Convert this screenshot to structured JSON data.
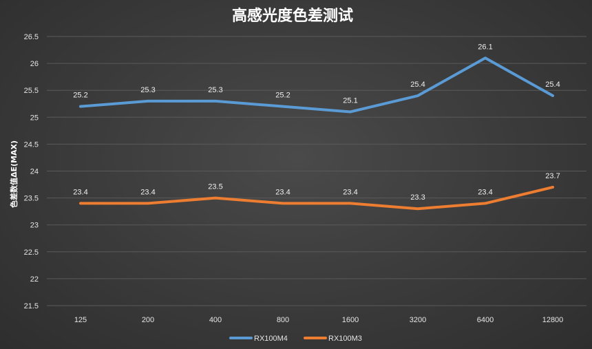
{
  "chart_data": {
    "type": "line",
    "title": "高感光度色差测试",
    "xlabel": "",
    "ylabel": "色差数值ΔE(MAX)",
    "categories": [
      "125",
      "200",
      "400",
      "800",
      "1600",
      "3200",
      "6400",
      "12800"
    ],
    "ylim": [
      21.5,
      26.5
    ],
    "yticks": [
      "21.5",
      "22",
      "22.5",
      "23",
      "23.5",
      "24",
      "24.5",
      "25",
      "25.5",
      "26",
      "26.5"
    ],
    "grid": true,
    "legend_position": "bottom",
    "series": [
      {
        "name": "RX100M4",
        "color": "#5b9bd5",
        "values": [
          25.2,
          25.3,
          25.3,
          25.2,
          25.1,
          25.4,
          26.1,
          25.4
        ],
        "labels": [
          "25.2",
          "25.3",
          "25.3",
          "25.2",
          "25.1",
          "25.4",
          "26.1",
          "25.4"
        ]
      },
      {
        "name": "RX100M3",
        "color": "#ed7d31",
        "values": [
          23.4,
          23.4,
          23.5,
          23.4,
          23.4,
          23.3,
          23.4,
          23.7
        ],
        "labels": [
          "23.4",
          "23.4",
          "23.5",
          "23.4",
          "23.4",
          "23.3",
          "23.4",
          "23.7"
        ]
      }
    ]
  }
}
